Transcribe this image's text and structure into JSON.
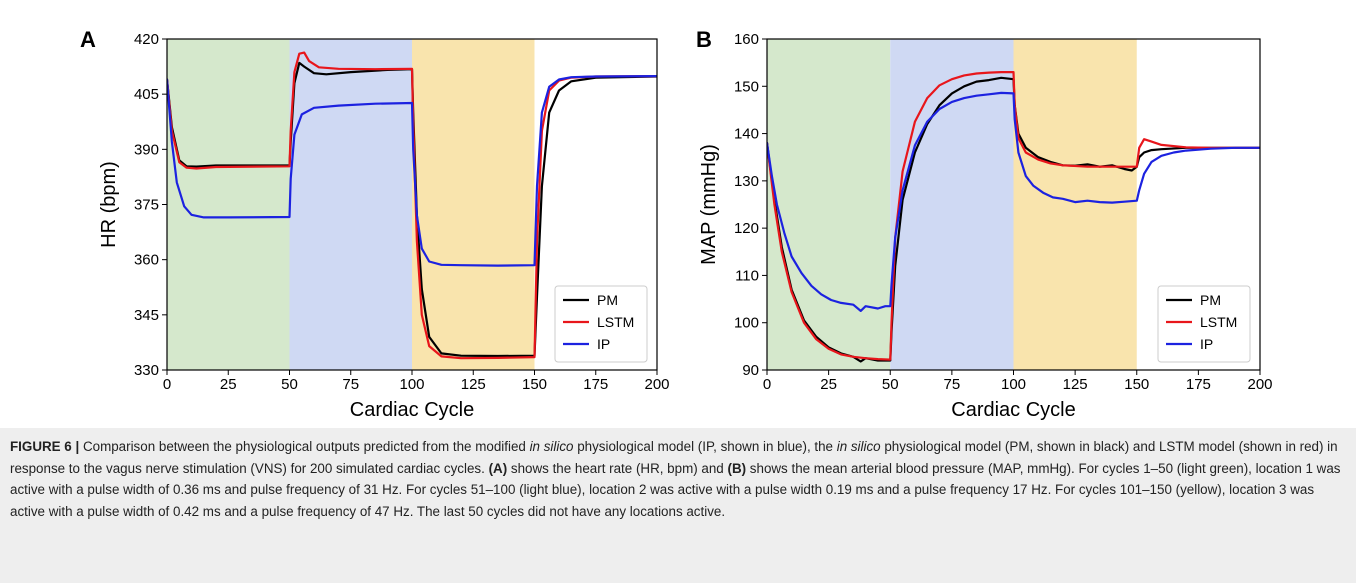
{
  "chart_data": [
    {
      "panel_label": "A",
      "type": "line",
      "xlabel": "Cardiac Cycle",
      "ylabel": "HR (bpm)",
      "xlim": [
        0,
        200
      ],
      "ylim": [
        330,
        420
      ],
      "xticks": [
        0,
        25,
        50,
        75,
        100,
        125,
        150,
        175,
        200
      ],
      "yticks": [
        330,
        345,
        360,
        375,
        390,
        405,
        420
      ],
      "grid": false,
      "legend": "lower-right",
      "shaded_regions": [
        {
          "x0": 0,
          "x1": 50,
          "color": "#d5e8cc"
        },
        {
          "x0": 50,
          "x1": 100,
          "color": "#cfd9f3"
        },
        {
          "x0": 100,
          "x1": 150,
          "color": "#f9e4ad"
        }
      ],
      "series": [
        {
          "name": "PM",
          "color": "#000000",
          "x": [
            0,
            2,
            5,
            8,
            12,
            20,
            50,
            50.5,
            52,
            54,
            56,
            60,
            65,
            75,
            90,
            100,
            100.5,
            102,
            104,
            107,
            112,
            120,
            135,
            150,
            151,
            153,
            156,
            160,
            165,
            175,
            200
          ],
          "y": [
            409,
            396,
            387,
            385.4,
            385.3,
            385.6,
            385.6,
            392,
            408,
            413.5,
            412.5,
            410.7,
            410.4,
            411,
            411.6,
            411.8,
            400,
            372,
            352,
            339,
            334.5,
            333.9,
            333.8,
            333.9,
            350,
            380,
            400,
            406,
            408.5,
            409.5,
            409.8
          ]
        },
        {
          "name": "LSTM",
          "color": "#e8161b",
          "x": [
            0,
            2,
            5,
            8,
            12,
            20,
            50,
            50.5,
            52,
            54,
            56,
            58,
            62,
            70,
            85,
            100,
            100.5,
            102,
            104,
            107,
            112,
            120,
            135,
            150,
            151,
            153,
            156,
            160,
            165,
            175,
            200
          ],
          "y": [
            409,
            395,
            386.5,
            385,
            384.8,
            385.2,
            385.4,
            395,
            411,
            416,
            416.3,
            414,
            412.3,
            411.9,
            411.8,
            411.9,
            397,
            365,
            345,
            336.5,
            333.7,
            333.2,
            333.3,
            333.5,
            365,
            395,
            406,
            408.7,
            409.5,
            409.8,
            409.9
          ]
        },
        {
          "name": "IP",
          "color": "#1c22e0",
          "x": [
            0,
            2,
            4,
            7,
            10,
            15,
            25,
            50,
            50.5,
            52,
            55,
            60,
            70,
            85,
            100,
            100.5,
            102,
            104,
            107,
            112,
            120,
            135,
            150,
            151,
            153,
            156,
            160,
            165,
            175,
            200
          ],
          "y": [
            409,
            392,
            381,
            374.5,
            372.2,
            371.5,
            371.5,
            371.6,
            382,
            394,
            399.5,
            401.3,
            401.9,
            402.4,
            402.6,
            390,
            372,
            363,
            359.5,
            358.6,
            358.5,
            358.4,
            358.5,
            380,
            400,
            407,
            409,
            409.6,
            409.8,
            409.9
          ]
        }
      ]
    },
    {
      "panel_label": "B",
      "type": "line",
      "xlabel": "Cardiac Cycle",
      "ylabel": "MAP (mmHg)",
      "xlim": [
        0,
        200
      ],
      "ylim": [
        90,
        160
      ],
      "xticks": [
        0,
        25,
        50,
        75,
        100,
        125,
        150,
        175,
        200
      ],
      "yticks": [
        90,
        100,
        110,
        120,
        130,
        140,
        150,
        160
      ],
      "grid": false,
      "legend": "lower-right",
      "shaded_regions": [
        {
          "x0": 0,
          "x1": 50,
          "color": "#d5e8cc"
        },
        {
          "x0": 50,
          "x1": 100,
          "color": "#cfd9f3"
        },
        {
          "x0": 100,
          "x1": 150,
          "color": "#f9e4ad"
        }
      ],
      "series": [
        {
          "name": "PM",
          "color": "#000000",
          "x": [
            0,
            3,
            6,
            10,
            15,
            20,
            25,
            30,
            35,
            38,
            40,
            45,
            50,
            50.5,
            52,
            55,
            60,
            65,
            70,
            75,
            80,
            85,
            90,
            95,
            100,
            100.5,
            102,
            105,
            110,
            115,
            120,
            125,
            130,
            135,
            140,
            145,
            148,
            150,
            151,
            153,
            156,
            160,
            170,
            180,
            190,
            200
          ],
          "y": [
            138,
            126,
            116,
            107,
            100.5,
            97,
            94.8,
            93.5,
            92.8,
            91.8,
            92.5,
            92,
            92,
            98,
            112,
            126,
            136,
            142,
            146,
            148.5,
            150,
            151,
            151.3,
            151.8,
            151.5,
            146,
            140,
            137,
            135,
            134,
            133.3,
            133.2,
            133.5,
            133,
            133.3,
            132.5,
            132.2,
            133,
            135,
            136,
            136.5,
            136.7,
            137,
            137,
            137,
            137
          ]
        },
        {
          "name": "LSTM",
          "color": "#e8161b",
          "x": [
            0,
            3,
            6,
            10,
            15,
            20,
            25,
            30,
            35,
            40,
            45,
            50,
            50.5,
            52,
            55,
            60,
            65,
            70,
            75,
            80,
            85,
            90,
            95,
            100,
            100.5,
            102,
            105,
            110,
            115,
            120,
            130,
            140,
            150,
            151,
            153,
            156,
            160,
            170,
            180,
            200
          ],
          "y": [
            138,
            125,
            115,
            106.5,
            100,
            96.5,
            94.5,
            93.3,
            92.8,
            92.5,
            92.3,
            92.2,
            100,
            118,
            132,
            142.5,
            147.5,
            150.2,
            151.5,
            152.3,
            152.7,
            152.9,
            153,
            153,
            146,
            139,
            136,
            134.5,
            133.7,
            133.3,
            133,
            133,
            133,
            137,
            138.8,
            138.3,
            137.6,
            137.1,
            137,
            137
          ]
        },
        {
          "name": "IP",
          "color": "#1c22e0",
          "x": [
            0,
            2,
            4,
            7,
            10,
            14,
            18,
            22,
            26,
            30,
            35,
            38,
            40,
            45,
            48,
            50,
            50.5,
            52,
            55,
            60,
            65,
            70,
            75,
            80,
            85,
            90,
            95,
            100,
            100.5,
            102,
            105,
            108,
            112,
            116,
            120,
            125,
            130,
            135,
            140,
            145,
            150,
            151,
            153,
            156,
            160,
            165,
            170,
            180,
            190,
            200
          ],
          "y": [
            138,
            131,
            125,
            119,
            114,
            110.5,
            107.8,
            106,
            104.8,
            104.2,
            103.8,
            102.5,
            103.5,
            103,
            103.5,
            103.5,
            108,
            118,
            128,
            137.5,
            142.5,
            145.2,
            146.7,
            147.5,
            148,
            148.3,
            148.6,
            148.5,
            143,
            136,
            131,
            129,
            127.5,
            126.5,
            126.2,
            125.5,
            125.8,
            125.5,
            125.4,
            125.6,
            125.8,
            128,
            131.5,
            134,
            135.3,
            136,
            136.4,
            136.8,
            137,
            137
          ]
        }
      ]
    }
  ],
  "caption": {
    "label": "FIGURE 6 |",
    "part1": " Comparison between the physiological outputs predicted from the modified ",
    "italic1": "in silico",
    "part2": " physiological model (IP, shown in blue), the ",
    "italic2": "in silico",
    "part3": " physiological model (PM, shown in black) and LSTM model (shown in red) in response to the vagus nerve stimulation (VNS) for 200 simulated cardiac cycles. ",
    "ref_a": "(A)",
    "part4": " shows the heart rate (HR, bpm) and ",
    "ref_b": "(B)",
    "part5": " shows the mean arterial blood pressure (MAP, mmHg). For cycles 1–50 (light green), location 1 was active with a pulse width of 0.36 ms and pulse frequency of 31 Hz. For cycles 51–100 (light blue), location 2 was active with a pulse width 0.19 ms and a pulse frequency 17 Hz. For cycles 101–150 (yellow), location 3 was active with a pulse width of 0.42 ms and a pulse frequency of 47 Hz. The last 50 cycles did not have any locations active."
  }
}
